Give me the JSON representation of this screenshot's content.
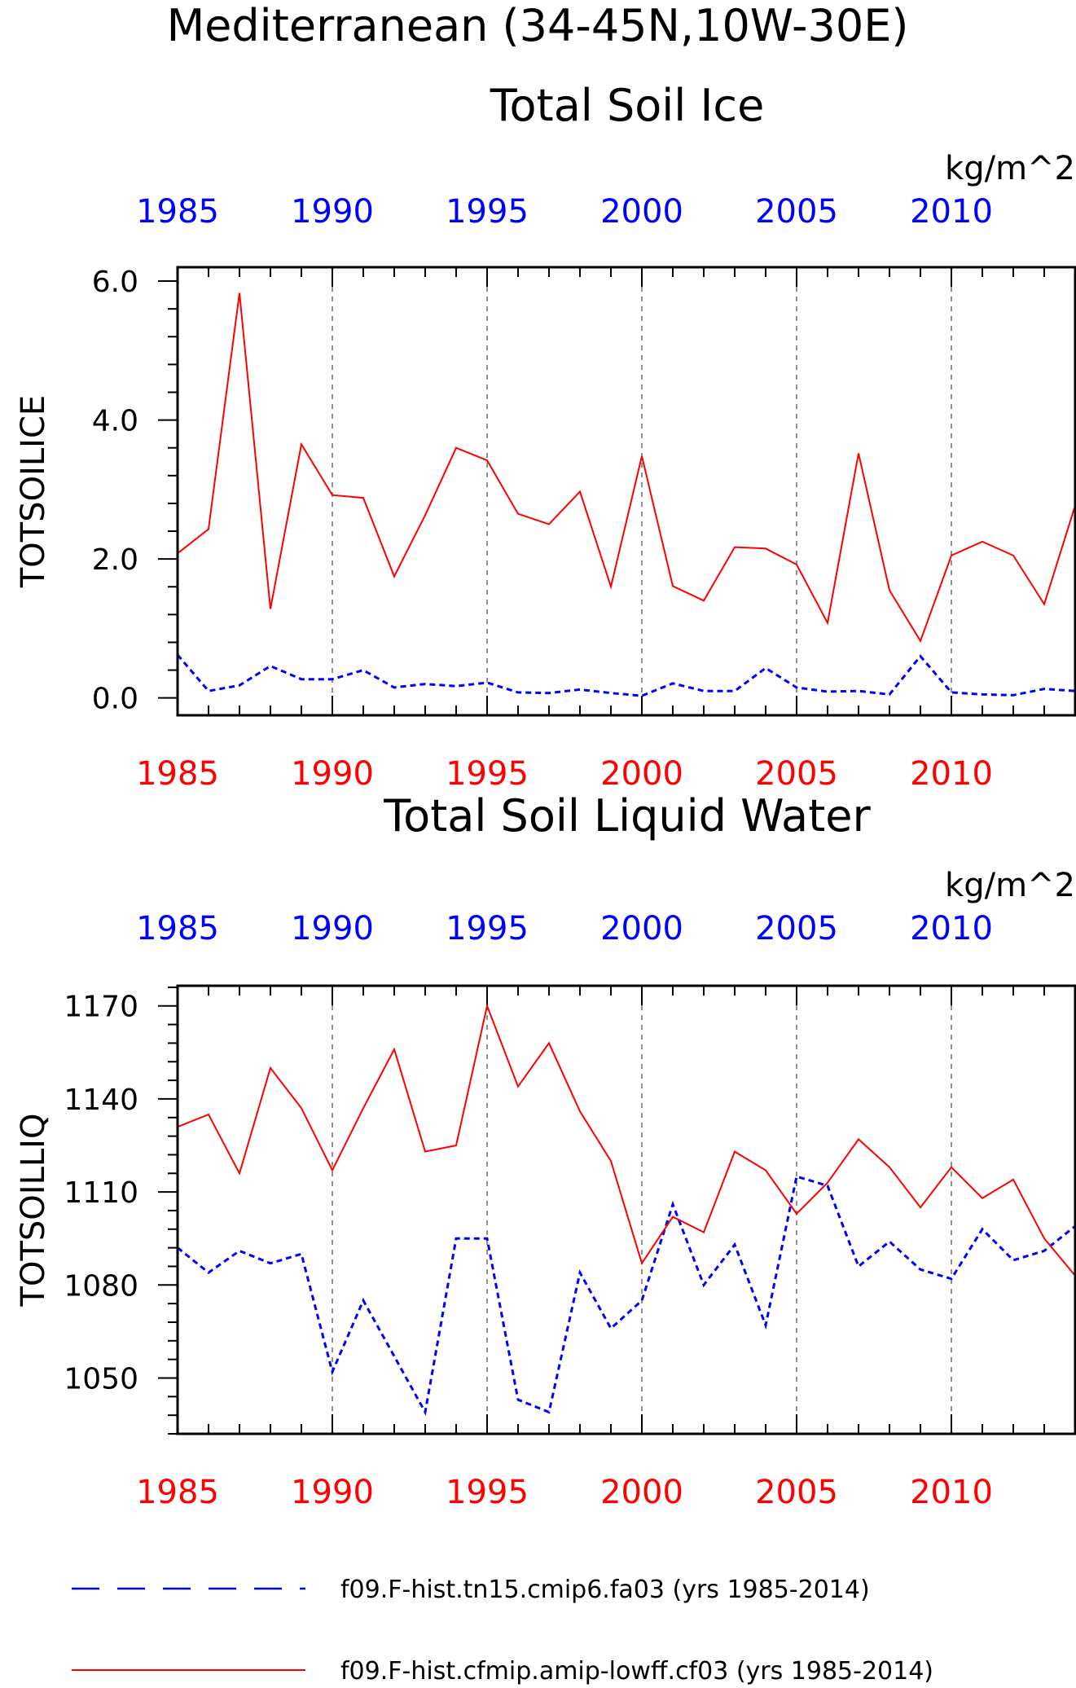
{
  "figure": {
    "title_line1": "Mediterranean (34-45N,10W-30E)"
  },
  "legend": {
    "entries": [
      {
        "label": "f09.F-hist.tn15.cmip6.fa03 (yrs 1985-2014)",
        "color": "#0000ff",
        "style": "dashed"
      },
      {
        "label": "f09.F-hist.cfmip.amip-lowff.cf03 (yrs 1985-2014)",
        "color": "#ff0000",
        "style": "solid"
      }
    ]
  },
  "chart_data": [
    {
      "type": "line",
      "title": "Total Soil Ice",
      "ylabel": "TOTSOILICE",
      "units": "kg/m^2",
      "xlim": [
        1985,
        2014
      ],
      "ylim": [
        -0.25,
        6.2
      ],
      "yticks": [
        0,
        2,
        4,
        6
      ],
      "ytick_labels": [
        "0.0",
        "2.0",
        "4.0",
        "6.0"
      ],
      "xticks": [
        1985,
        1990,
        1995,
        2000,
        2005,
        2010
      ],
      "xtick_labels": [
        "1985",
        "1990",
        "1995",
        "2000",
        "2005",
        "2010"
      ],
      "top_xtick_labels": [
        "1985",
        "1990",
        "1995",
        "2000",
        "2005",
        "2010"
      ],
      "vgrid": [
        1990,
        1995,
        2000,
        2005,
        2010
      ],
      "x": [
        1985,
        1986,
        1987,
        1988,
        1989,
        1990,
        1991,
        1992,
        1993,
        1994,
        1995,
        1996,
        1997,
        1998,
        1999,
        2000,
        2001,
        2002,
        2003,
        2004,
        2005,
        2006,
        2007,
        2008,
        2009,
        2010,
        2011,
        2012,
        2013,
        2014
      ],
      "series": [
        {
          "legend_index": 0,
          "color": "#0000ff",
          "style": "dashed",
          "values": [
            0.62,
            0.1,
            0.18,
            0.46,
            0.27,
            0.27,
            0.4,
            0.15,
            0.2,
            0.17,
            0.22,
            0.08,
            0.07,
            0.12,
            0.07,
            0.03,
            0.21,
            0.1,
            0.1,
            0.43,
            0.15,
            0.09,
            0.1,
            0.05,
            0.6,
            0.08,
            0.05,
            0.04,
            0.13,
            0.1
          ]
        },
        {
          "legend_index": 1,
          "color": "#ff0000",
          "style": "solid",
          "values": [
            2.08,
            2.43,
            5.83,
            1.28,
            3.65,
            2.92,
            2.88,
            1.75,
            2.63,
            3.6,
            3.42,
            2.65,
            2.5,
            2.97,
            1.6,
            3.48,
            1.61,
            1.4,
            2.17,
            2.15,
            1.92,
            1.08,
            3.52,
            1.55,
            0.82,
            2.05,
            2.25,
            2.05,
            1.35,
            2.77
          ]
        }
      ]
    },
    {
      "type": "line",
      "title": "Total Soil Liquid Water",
      "ylabel": "TOTSOILLIQ",
      "units": "kg/m^2",
      "xlim": [
        1985,
        2014
      ],
      "ylim": [
        1032,
        1176.5
      ],
      "yticks": [
        1050,
        1080,
        1110,
        1140,
        1170
      ],
      "ytick_labels": [
        "1050",
        "1080",
        "1110",
        "1140",
        "1170"
      ],
      "xticks": [
        1985,
        1990,
        1995,
        2000,
        2005,
        2010
      ],
      "xtick_labels": [
        "1985",
        "1990",
        "1995",
        "2000",
        "2005",
        "2010"
      ],
      "top_xtick_labels": [
        "1985",
        "1990",
        "1995",
        "2000",
        "2005",
        "2010"
      ],
      "vgrid": [
        1990,
        1995,
        2000,
        2005,
        2010
      ],
      "x": [
        1985,
        1986,
        1987,
        1988,
        1989,
        1990,
        1991,
        1992,
        1993,
        1994,
        1995,
        1996,
        1997,
        1998,
        1999,
        2000,
        2001,
        2002,
        2003,
        2004,
        2005,
        2006,
        2007,
        2008,
        2009,
        2010,
        2011,
        2012,
        2013,
        2014
      ],
      "series": [
        {
          "legend_index": 0,
          "color": "#0000ff",
          "style": "dashed",
          "values": [
            1092,
            1084,
            1091,
            1087,
            1090,
            1052,
            1075,
            1057,
            1039,
            1095,
            1095,
            1043,
            1039,
            1084,
            1066,
            1075,
            1106,
            1080,
            1093,
            1067,
            1115,
            1112,
            1086,
            1094,
            1085,
            1082,
            1098,
            1088,
            1091,
            1099
          ]
        },
        {
          "legend_index": 1,
          "color": "#ff0000",
          "style": "solid",
          "values": [
            1131,
            1135,
            1116,
            1150,
            1137,
            1117,
            1137,
            1156,
            1123,
            1125,
            1170,
            1144,
            1158,
            1136,
            1120,
            1087,
            1102,
            1097,
            1123,
            1117,
            1103,
            1113,
            1127,
            1118,
            1105,
            1118,
            1108,
            1114,
            1095,
            1083
          ]
        }
      ]
    }
  ]
}
